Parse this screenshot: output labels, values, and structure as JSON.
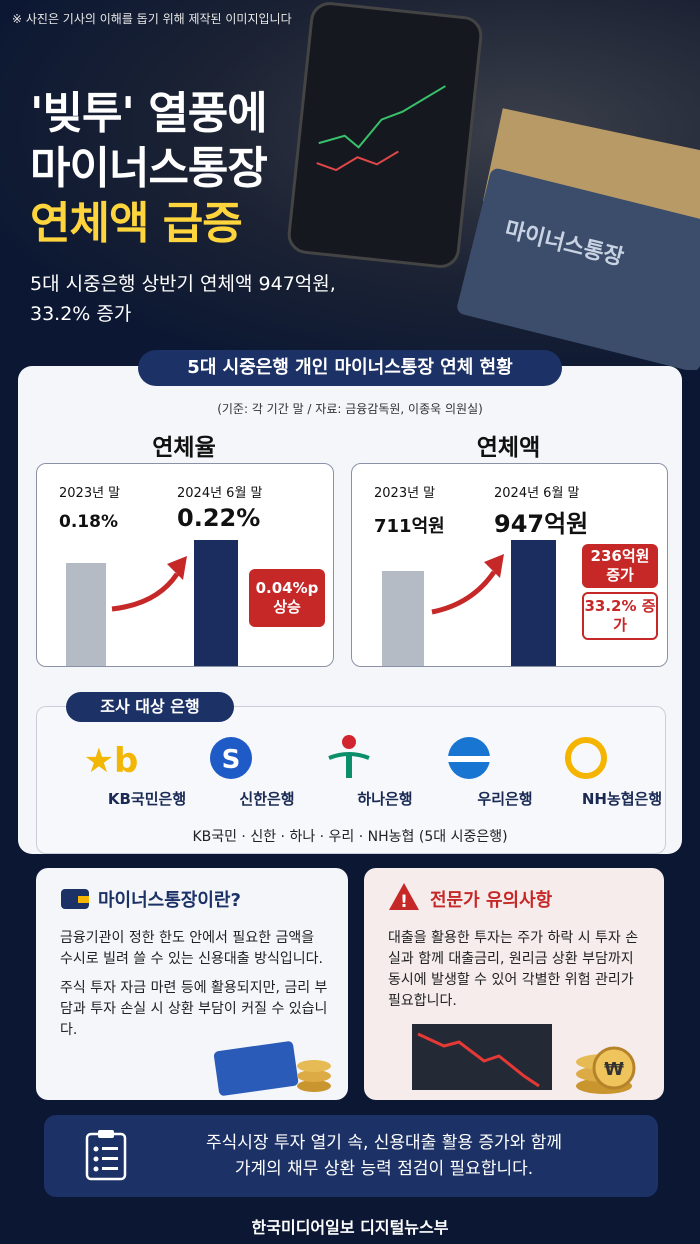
{
  "notice": "※ 사진은 기사의 이해를 돕기 위해 제작된 이미지입니다",
  "headline": [
    "'빚투' 열풍에",
    "마이너스통장",
    "연체액 급증"
  ],
  "subtitle": [
    "5대 시중은행 상반기 연체액 947억원,",
    "33.2% 증가"
  ],
  "photo_text": "마이너스통장",
  "panel": {
    "title": "5대 시중은행 개인 마이너스통장 연체 현황",
    "source": "(기준: 각 기간 말 / 자료: 금융감독원, 이종욱 의원실)"
  },
  "chart_data": [
    {
      "type": "bar",
      "title": "연체율",
      "categories": [
        "2023년 말",
        "2024년 6월 말"
      ],
      "values": [
        0.18,
        0.22
      ],
      "value_labels": [
        "0.18%",
        "0.22%"
      ],
      "colors": [
        "#b5bbc5",
        "#1b2d5e"
      ],
      "annotations": [
        "0.04%p 상승"
      ]
    },
    {
      "type": "bar",
      "title": "연체액",
      "categories": [
        "2023년 말",
        "2024년 6월 말"
      ],
      "values": [
        711,
        947
      ],
      "value_labels": [
        "711억원",
        "947억원"
      ],
      "colors": [
        "#b5bbc5",
        "#1b2d5e"
      ],
      "annotations": [
        "236억원 증가",
        "33.2% 증가"
      ]
    }
  ],
  "banks": {
    "title": "조사 대상 은행",
    "names": [
      "KB국민은행",
      "신한은행",
      "하나은행",
      "우리은행",
      "NH농협은행"
    ],
    "caption": "KB국민 · 신한 · 하나 · 우리 · NH농협 (5대 시중은행)"
  },
  "info": {
    "title": "마이너스통장이란?",
    "paragraphs": [
      "금융기관이 정한 한도 안에서 필요한 금액을 수시로 빌려 쓸 수 있는 신용대출 방식입니다.",
      "주식 투자 자금 마련 등에 활용되지만, 금리 부담과 투자 손실 시 상환 부담이 커질 수 있습니다."
    ]
  },
  "warning": {
    "title": "전문가 유의사항",
    "paragraphs": [
      "대출을 활용한 투자는 주가 하락 시 투자 손실과 함께 대출금리, 원리금 상환 부담까지 동시에 발생할 수 있어 각별한 위험 관리가 필요합니다."
    ]
  },
  "conclusion": [
    "주식시장 투자 열기 속, 신용대출 활용 증가와 함께",
    "가계의 채무 상환 능력 점검이 필요합니다."
  ],
  "footer": "한국미디어일보 디지털뉴스부"
}
